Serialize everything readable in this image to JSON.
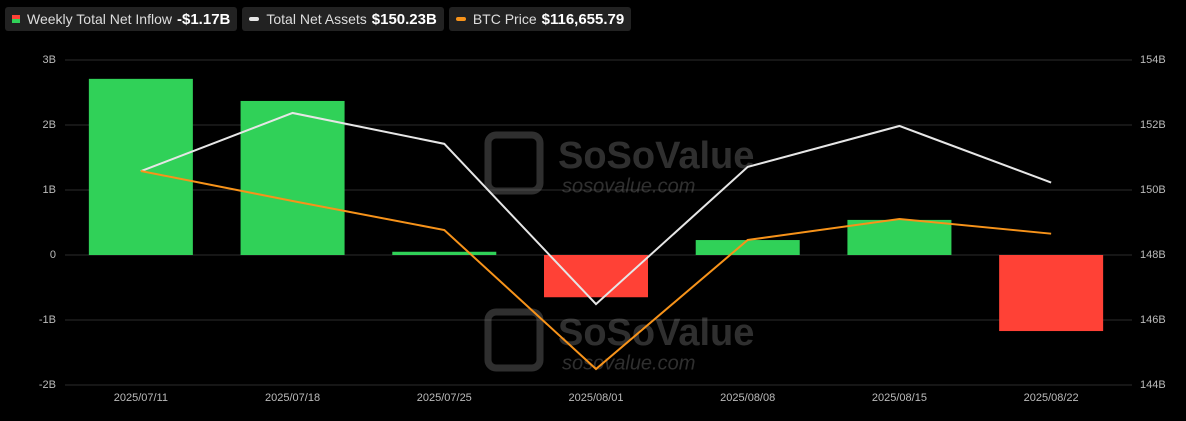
{
  "chart_data": {
    "type": "bar-line",
    "categories": [
      "2025/07/11",
      "2025/07/18",
      "2025/07/25",
      "2025/08/01",
      "2025/08/08",
      "2025/08/15",
      "2025/08/22"
    ],
    "series": [
      {
        "name": "Weekly Total Net Inflow",
        "type": "bar",
        "axis": "y",
        "color": "#30d158",
        "negative_color": "#ff4136",
        "values": [
          2.71,
          2.37,
          0.05,
          -0.65,
          0.23,
          0.54,
          -1.17
        ],
        "legend_value": "-$1.17B"
      },
      {
        "name": "Total Net Assets",
        "type": "line",
        "axis": "y2",
        "color": "#e6e6e6",
        "values": [
          150.58,
          152.37,
          151.42,
          146.49,
          150.71,
          151.97,
          150.23
        ],
        "legend_value": "$150.23B"
      },
      {
        "name": "BTC Price",
        "type": "line",
        "axis": "y3",
        "color": "#f7931a",
        "values": [
          118585,
          117662,
          116769,
          112492,
          116462,
          117108,
          116655.79
        ],
        "legend_value": "$116,655.79"
      }
    ],
    "ylim": [
      -2,
      3
    ],
    "yticks": [
      {
        "value": -2,
        "label": "-2B"
      },
      {
        "value": -1,
        "label": "-1B"
      },
      {
        "value": 0,
        "label": "0"
      },
      {
        "value": 1,
        "label": "1B"
      },
      {
        "value": 2,
        "label": "2B"
      },
      {
        "value": 3,
        "label": "3B"
      }
    ],
    "y2lim": [
      144,
      154
    ],
    "y2ticks": [
      {
        "value": 144,
        "label": "144B"
      },
      {
        "value": 146,
        "label": "146B"
      },
      {
        "value": 148,
        "label": "148B"
      },
      {
        "value": 150,
        "label": "150B"
      },
      {
        "value": 152,
        "label": "152B"
      },
      {
        "value": 154,
        "label": "154B"
      }
    ],
    "y3lim": [
      112000,
      122000
    ],
    "grid": true
  },
  "watermark": {
    "brand": "SoSoValue",
    "url": "sosovalue.com"
  }
}
